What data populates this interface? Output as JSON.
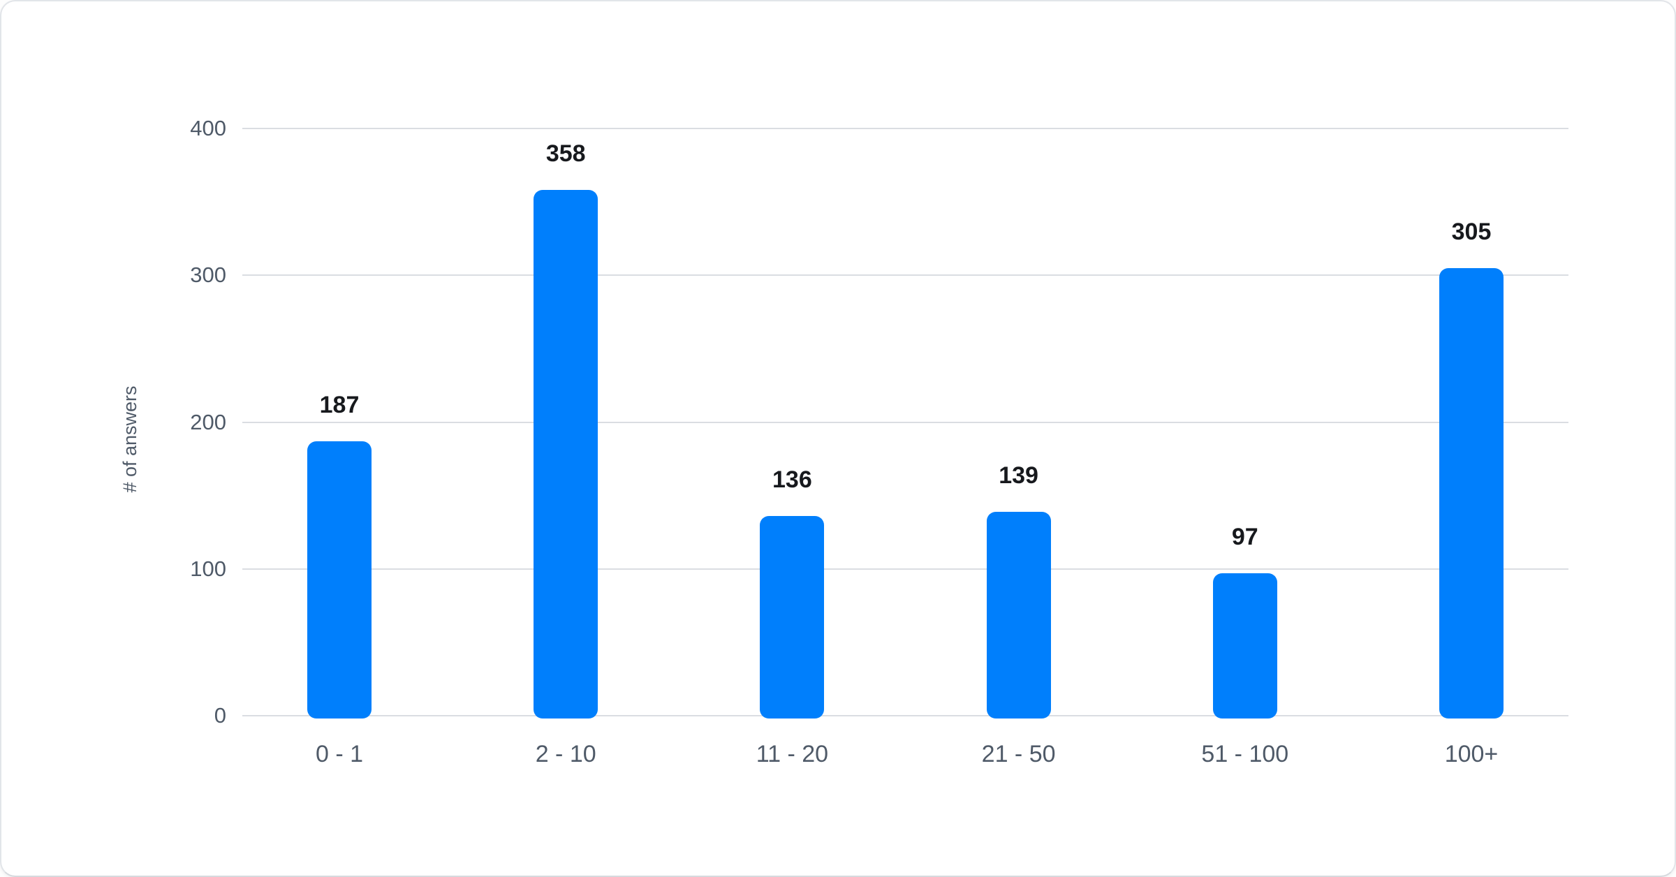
{
  "chart_data": {
    "type": "bar",
    "title": "",
    "categories": [
      "0 - 1",
      "2 - 10",
      "11 - 20",
      "21 - 50",
      "51 - 100",
      "100+"
    ],
    "values": [
      187,
      358,
      136,
      139,
      97,
      305
    ],
    "xlabel": "",
    "ylabel": "# of answers",
    "yticks": [
      0,
      100,
      200,
      300,
      400
    ],
    "ylim": [
      0,
      400
    ],
    "grid": true,
    "legend": false,
    "colors": {
      "bar": "#007ffc",
      "value_label": "#17191d",
      "axis_label": "#4f5a68",
      "gridline": "#dadde2",
      "card_background": "#ffffff",
      "card_border": "#e2e5e9"
    }
  }
}
